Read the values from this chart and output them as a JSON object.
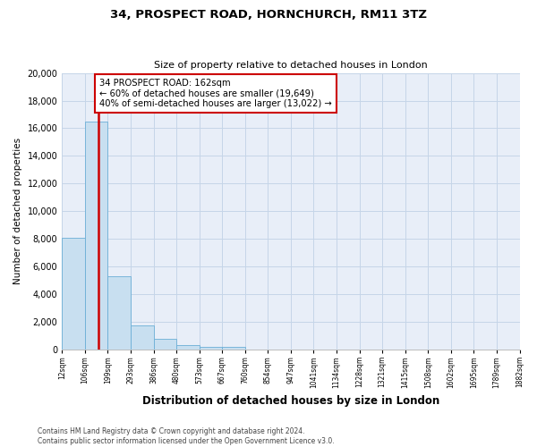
{
  "title": "34, PROSPECT ROAD, HORNCHURCH, RM11 3TZ",
  "subtitle": "Size of property relative to detached houses in London",
  "xlabel": "Distribution of detached houses by size in London",
  "ylabel": "Number of detached properties",
  "bar_values": [
    8100,
    16500,
    5300,
    1750,
    750,
    300,
    200,
    200,
    0,
    0,
    0,
    0,
    0,
    0,
    0,
    0,
    0,
    0,
    0,
    0
  ],
  "bin_labels": [
    "12sqm",
    "106sqm",
    "199sqm",
    "293sqm",
    "386sqm",
    "480sqm",
    "573sqm",
    "667sqm",
    "760sqm",
    "854sqm",
    "947sqm",
    "1041sqm",
    "1134sqm",
    "1228sqm",
    "1321sqm",
    "1415sqm",
    "1508sqm",
    "1602sqm",
    "1695sqm",
    "1789sqm",
    "1882sqm"
  ],
  "bar_color": "#c8dff0",
  "bar_edge_color": "#6baed6",
  "vline_color": "#cc0000",
  "annotation_text": "34 PROSPECT ROAD: 162sqm\n← 60% of detached houses are smaller (19,649)\n40% of semi-detached houses are larger (13,022) →",
  "annotation_box_color": "white",
  "annotation_box_edge": "#cc0000",
  "ylim": [
    0,
    20000
  ],
  "yticks": [
    0,
    2000,
    4000,
    6000,
    8000,
    10000,
    12000,
    14000,
    16000,
    18000,
    20000
  ],
  "footer_line1": "Contains HM Land Registry data © Crown copyright and database right 2024.",
  "footer_line2": "Contains public sector information licensed under the Open Government Licence v3.0.",
  "grid_color": "#c5d5e8",
  "background_color": "#e8eef8"
}
